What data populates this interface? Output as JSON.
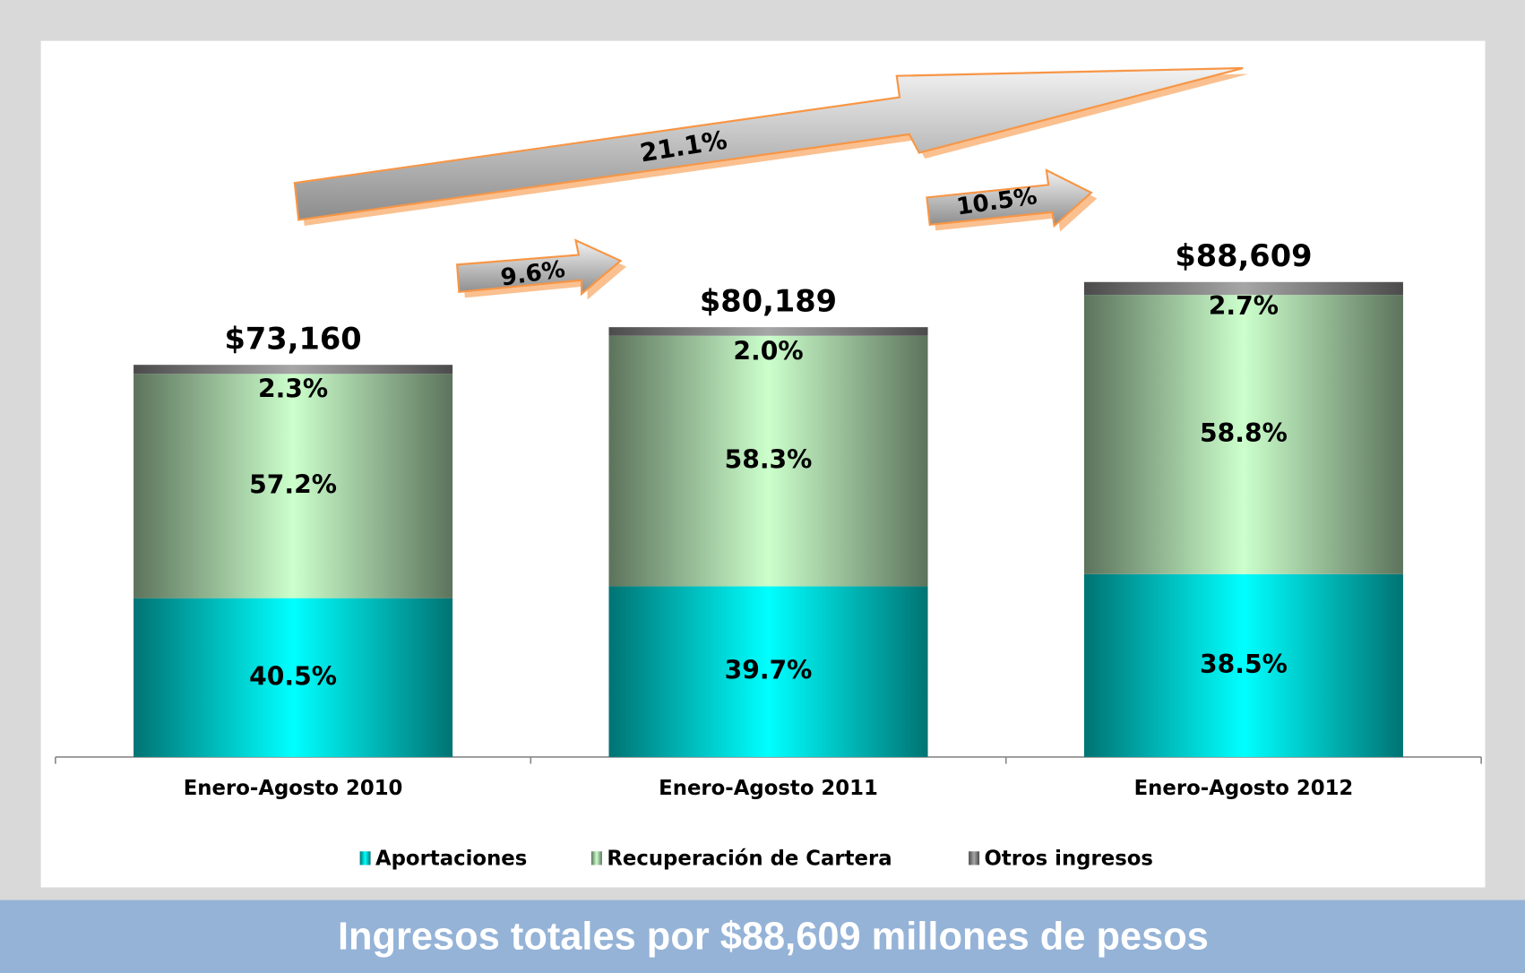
{
  "chart_data": {
    "type": "bar",
    "stacked": true,
    "categories": [
      "Enero-Agosto 2010",
      "Enero-Agosto 2011",
      "Enero-Agosto 2012"
    ],
    "totals": {
      "values": [
        73160,
        80189,
        88609
      ],
      "value_labels": [
        "$73,160",
        "$80,189",
        "$88,609"
      ]
    },
    "series": [
      {
        "name": "Aportaciones",
        "color": "#00ffff",
        "values": [
          40.5,
          39.7,
          38.5
        ],
        "value_labels": [
          "40.5%",
          "39.7%",
          "38.5%"
        ]
      },
      {
        "name": "Recuperación de Cartera",
        "color": "#ccffcc",
        "values": [
          57.2,
          58.3,
          58.8
        ],
        "value_labels": [
          "57.2%",
          "58.3%",
          "58.8%"
        ]
      },
      {
        "name": "Otros ingresos",
        "color": "#a6a6a6",
        "values": [
          2.3,
          2.0,
          2.7
        ],
        "value_labels": [
          "2.3%",
          "2.0%",
          "2.7%"
        ]
      }
    ],
    "annotations": [
      "9.6%",
      "10.5%",
      "21.1%"
    ],
    "legend": "bottom"
  },
  "footer": "Ingresos totales por $88,609 millones de pesos"
}
